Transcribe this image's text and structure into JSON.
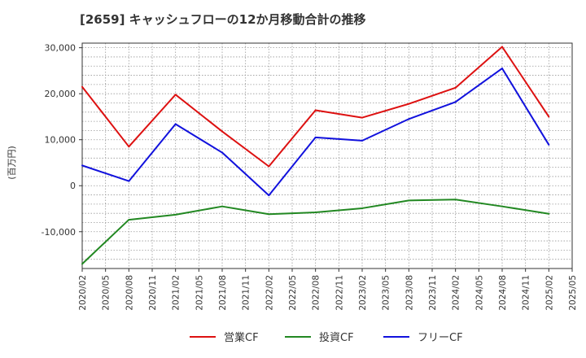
{
  "chart_data": {
    "type": "line",
    "title": "[2659]  キャッシュフローの12か月移動合計の推移",
    "ylabel": "(百万円)",
    "xlabel": "",
    "ylim": [
      -18000,
      31000
    ],
    "yticks": [
      30000,
      20000,
      10000,
      0,
      -10000
    ],
    "ytick_labels": [
      "30,000",
      "20,000",
      "10,000",
      "0",
      "-10,000"
    ],
    "x_tick_labels": [
      "2020/02",
      "2020/05",
      "2020/08",
      "2020/11",
      "2021/02",
      "2021/05",
      "2021/08",
      "2021/11",
      "2022/02",
      "2022/05",
      "2022/08",
      "2022/11",
      "2023/02",
      "2023/05",
      "2023/08",
      "2023/11",
      "2024/02",
      "2024/05",
      "2024/08",
      "2024/11",
      "2025/02",
      "2025/05"
    ],
    "x": [
      "2020/02",
      "2020/08",
      "2021/02",
      "2021/08",
      "2022/02",
      "2022/08",
      "2023/02",
      "2023/08",
      "2024/02",
      "2024/08",
      "2025/02"
    ],
    "series": [
      {
        "name": "営業CF",
        "color": "#dd1111",
        "values": [
          21500,
          8500,
          19800,
          11800,
          4200,
          16400,
          14800,
          17800,
          21300,
          30200,
          15000
        ]
      },
      {
        "name": "投資CF",
        "color": "#228822",
        "values": [
          -17000,
          -7400,
          -6300,
          -4500,
          -6200,
          -5800,
          -4900,
          -3200,
          -3000,
          -4500,
          -6100
        ]
      },
      {
        "name": "フリーCF",
        "color": "#1111dd",
        "values": [
          4400,
          1000,
          13400,
          7200,
          -2100,
          10500,
          9800,
          14500,
          18200,
          25500,
          8900
        ]
      }
    ],
    "grid": true,
    "legend": "bottom"
  }
}
